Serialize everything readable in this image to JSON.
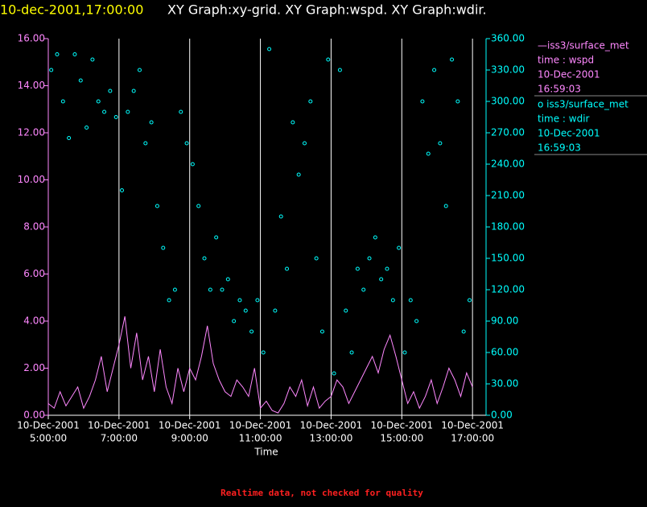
{
  "chart_data": {
    "type": "dual",
    "title_time": "10-dec-2001,17:00:00",
    "title": "XY Graph:xy-grid.  XY Graph:wspd.  XY Graph:wdir.",
    "xlabel": "Time",
    "footer": "Realtime data, not checked for quality",
    "grid": true,
    "xlim": [
      "2001-12-10 05:00",
      "2001-12-10 17:23"
    ],
    "xticks": [
      {
        "value": "2001-12-10 05:00",
        "label": [
          "10-Dec-2001",
          "5:00:00"
        ]
      },
      {
        "value": "2001-12-10 07:00",
        "label": [
          "10-Dec-2001",
          "7:00:00"
        ]
      },
      {
        "value": "2001-12-10 09:00",
        "label": [
          "10-Dec-2001",
          "9:00:00"
        ]
      },
      {
        "value": "2001-12-10 11:00",
        "label": [
          "10-Dec-2001",
          "11:00:00"
        ]
      },
      {
        "value": "2001-12-10 13:00",
        "label": [
          "10-Dec-2001",
          "13:00:00"
        ]
      },
      {
        "value": "2001-12-10 15:00",
        "label": [
          "10-Dec-2001",
          "15:00:00"
        ]
      },
      {
        "value": "2001-12-10 17:00",
        "label": [
          "10-Dec-2001",
          "17:00:00"
        ]
      }
    ],
    "ylim": [
      0,
      16
    ],
    "yticks": [
      {
        "value": 0,
        "label": "0.00"
      },
      {
        "value": 2,
        "label": "2.00"
      },
      {
        "value": 4,
        "label": "4.00"
      },
      {
        "value": 6,
        "label": "6.00"
      },
      {
        "value": 8,
        "label": "8.00"
      },
      {
        "value": 10,
        "label": "10.00"
      },
      {
        "value": 12,
        "label": "12.00"
      },
      {
        "value": 14,
        "label": "14.00"
      },
      {
        "value": 16,
        "label": "16.00"
      }
    ],
    "y2lim": [
      0,
      360
    ],
    "y2ticks": [
      {
        "value": 0,
        "label": "0.00"
      },
      {
        "value": 30,
        "label": "30.00"
      },
      {
        "value": 60,
        "label": "60.00"
      },
      {
        "value": 90,
        "label": "90.00"
      },
      {
        "value": 120,
        "label": "120.00"
      },
      {
        "value": 150,
        "label": "150.00"
      },
      {
        "value": 180,
        "label": "180.00"
      },
      {
        "value": 210,
        "label": "210.00"
      },
      {
        "value": 240,
        "label": "240.00"
      },
      {
        "value": 270,
        "label": "270.00"
      },
      {
        "value": 300,
        "label": "300.00"
      },
      {
        "value": 330,
        "label": "330.00"
      },
      {
        "value": 360,
        "label": "360.00"
      }
    ],
    "series": [
      {
        "name": "—iss3/surface_met",
        "legend": [
          "time : wspd",
          "10-Dec-2001",
          "16:59:03"
        ],
        "kind": "line",
        "color": "#ff88ff",
        "x": [
          "2001-12-10 05:00",
          "2001-12-10 05:10",
          "2001-12-10 05:20",
          "2001-12-10 05:30",
          "2001-12-10 05:40",
          "2001-12-10 05:50",
          "2001-12-10 06:00",
          "2001-12-10 06:10",
          "2001-12-10 06:20",
          "2001-12-10 06:30",
          "2001-12-10 06:40",
          "2001-12-10 06:50",
          "2001-12-10 07:00",
          "2001-12-10 07:10",
          "2001-12-10 07:20",
          "2001-12-10 07:30",
          "2001-12-10 07:40",
          "2001-12-10 07:50",
          "2001-12-10 08:00",
          "2001-12-10 08:10",
          "2001-12-10 08:20",
          "2001-12-10 08:30",
          "2001-12-10 08:40",
          "2001-12-10 08:50",
          "2001-12-10 09:00",
          "2001-12-10 09:10",
          "2001-12-10 09:20",
          "2001-12-10 09:30",
          "2001-12-10 09:40",
          "2001-12-10 09:50",
          "2001-12-10 10:00",
          "2001-12-10 10:10",
          "2001-12-10 10:20",
          "2001-12-10 10:30",
          "2001-12-10 10:40",
          "2001-12-10 10:50",
          "2001-12-10 11:00",
          "2001-12-10 11:10",
          "2001-12-10 11:20",
          "2001-12-10 11:30",
          "2001-12-10 11:40",
          "2001-12-10 11:50",
          "2001-12-10 12:00",
          "2001-12-10 12:10",
          "2001-12-10 12:20",
          "2001-12-10 12:30",
          "2001-12-10 12:40",
          "2001-12-10 12:50",
          "2001-12-10 13:00",
          "2001-12-10 13:10",
          "2001-12-10 13:20",
          "2001-12-10 13:30",
          "2001-12-10 13:40",
          "2001-12-10 13:50",
          "2001-12-10 14:00",
          "2001-12-10 14:10",
          "2001-12-10 14:20",
          "2001-12-10 14:30",
          "2001-12-10 14:40",
          "2001-12-10 14:50",
          "2001-12-10 15:00",
          "2001-12-10 15:10",
          "2001-12-10 15:20",
          "2001-12-10 15:30",
          "2001-12-10 15:40",
          "2001-12-10 15:50",
          "2001-12-10 16:00",
          "2001-12-10 16:10",
          "2001-12-10 16:20",
          "2001-12-10 16:30",
          "2001-12-10 16:40",
          "2001-12-10 16:50",
          "2001-12-10 17:00"
        ],
        "values": [
          0.5,
          0.3,
          1.0,
          0.4,
          0.8,
          1.2,
          0.3,
          0.8,
          1.5,
          2.5,
          1.0,
          2.0,
          3.0,
          4.2,
          2.0,
          3.5,
          1.5,
          2.5,
          1.0,
          2.8,
          1.2,
          0.5,
          2.0,
          1.0,
          2.0,
          1.5,
          2.5,
          3.8,
          2.2,
          1.5,
          1.0,
          0.8,
          1.5,
          1.2,
          0.8,
          2.0,
          0.3,
          0.6,
          0.2,
          0.1,
          0.5,
          1.2,
          0.8,
          1.5,
          0.4,
          1.2,
          0.3,
          0.6,
          0.8,
          1.5,
          1.2,
          0.5,
          1.0,
          1.5,
          2.0,
          2.5,
          1.8,
          2.8,
          3.4,
          2.5,
          1.5,
          0.5,
          1.0,
          0.3,
          0.8,
          1.5,
          0.5,
          1.2,
          2.0,
          1.5,
          0.8,
          1.8,
          1.2
        ]
      },
      {
        "name": "o iss3/surface_met",
        "legend": [
          "time : wdir",
          "10-Dec-2001",
          "16:59:03"
        ],
        "kind": "scatter",
        "axis": "y2",
        "color": "#00ffff",
        "x": [
          "2001-12-10 05:05",
          "2001-12-10 05:15",
          "2001-12-10 05:25",
          "2001-12-10 05:35",
          "2001-12-10 05:45",
          "2001-12-10 05:55",
          "2001-12-10 06:05",
          "2001-12-10 06:15",
          "2001-12-10 06:25",
          "2001-12-10 06:35",
          "2001-12-10 06:45",
          "2001-12-10 06:55",
          "2001-12-10 07:05",
          "2001-12-10 07:15",
          "2001-12-10 07:25",
          "2001-12-10 07:35",
          "2001-12-10 07:45",
          "2001-12-10 07:55",
          "2001-12-10 08:05",
          "2001-12-10 08:15",
          "2001-12-10 08:25",
          "2001-12-10 08:35",
          "2001-12-10 08:45",
          "2001-12-10 08:55",
          "2001-12-10 09:05",
          "2001-12-10 09:15",
          "2001-12-10 09:25",
          "2001-12-10 09:35",
          "2001-12-10 09:45",
          "2001-12-10 09:55",
          "2001-12-10 10:05",
          "2001-12-10 10:15",
          "2001-12-10 10:25",
          "2001-12-10 10:35",
          "2001-12-10 10:45",
          "2001-12-10 10:55",
          "2001-12-10 11:05",
          "2001-12-10 11:15",
          "2001-12-10 11:25",
          "2001-12-10 11:35",
          "2001-12-10 11:45",
          "2001-12-10 11:55",
          "2001-12-10 12:05",
          "2001-12-10 12:15",
          "2001-12-10 12:25",
          "2001-12-10 12:35",
          "2001-12-10 12:45",
          "2001-12-10 12:55",
          "2001-12-10 13:05",
          "2001-12-10 13:15",
          "2001-12-10 13:25",
          "2001-12-10 13:35",
          "2001-12-10 13:45",
          "2001-12-10 13:55",
          "2001-12-10 14:05",
          "2001-12-10 14:15",
          "2001-12-10 14:25",
          "2001-12-10 14:35",
          "2001-12-10 14:45",
          "2001-12-10 14:55",
          "2001-12-10 15:05",
          "2001-12-10 15:15",
          "2001-12-10 15:25",
          "2001-12-10 15:35",
          "2001-12-10 15:45",
          "2001-12-10 15:55",
          "2001-12-10 16:05",
          "2001-12-10 16:15",
          "2001-12-10 16:25",
          "2001-12-10 16:35",
          "2001-12-10 16:45",
          "2001-12-10 16:55"
        ],
        "values": [
          330,
          345,
          300,
          265,
          345,
          320,
          275,
          340,
          300,
          290,
          310,
          285,
          215,
          290,
          310,
          330,
          260,
          280,
          200,
          160,
          110,
          120,
          290,
          260,
          240,
          200,
          150,
          120,
          170,
          120,
          130,
          90,
          110,
          100,
          80,
          110,
          60,
          350,
          100,
          190,
          140,
          280,
          230,
          260,
          300,
          150,
          80,
          340,
          40,
          330,
          100,
          60,
          140,
          120,
          150,
          170,
          130,
          140,
          110,
          160,
          60,
          110,
          90,
          300,
          250,
          330,
          260,
          200,
          340,
          300,
          80,
          110
        ]
      }
    ]
  }
}
